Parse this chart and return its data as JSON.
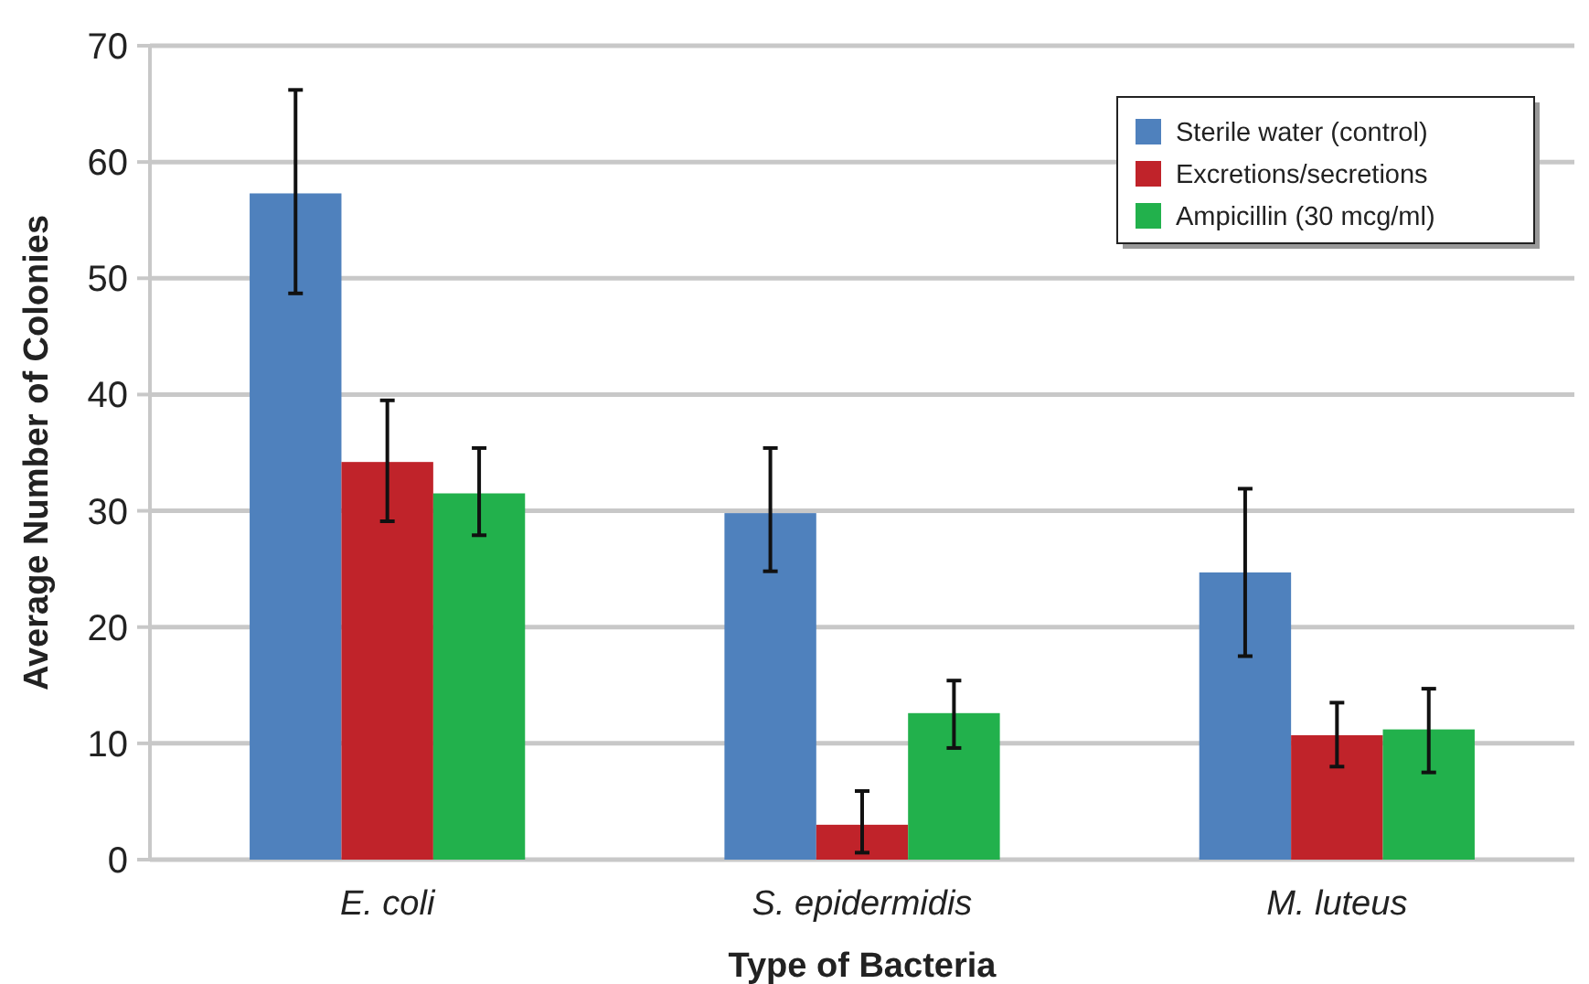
{
  "chart_data": {
    "type": "bar",
    "xlabel": "Type of Bacteria",
    "ylabel": "Average Number of Colonies",
    "categories": [
      "E. coli",
      "S. epidermidis",
      "M. luteus"
    ],
    "series": [
      {
        "name": "Sterile water (control)",
        "color": "#4f81bd",
        "values": [
          57.3,
          29.8,
          24.7
        ],
        "errors": [
          [
            48.7,
            66.2
          ],
          [
            24.8,
            35.4
          ],
          [
            17.5,
            31.9
          ]
        ]
      },
      {
        "name": "Excretions/secretions",
        "color": "#c0232a",
        "values": [
          34.2,
          3.0,
          10.7
        ],
        "errors": [
          [
            29.1,
            39.5
          ],
          [
            0.6,
            5.9
          ],
          [
            8.0,
            13.5
          ]
        ]
      },
      {
        "name": "Ampicillin (30 mcg/ml)",
        "color": "#22b14c",
        "values": [
          31.5,
          12.6,
          11.2
        ],
        "errors": [
          [
            27.9,
            35.4
          ],
          [
            9.6,
            15.4
          ],
          [
            7.5,
            14.7
          ]
        ]
      }
    ],
    "ylim": [
      0,
      70
    ],
    "yticks": [
      0,
      10,
      20,
      30,
      40,
      50,
      60,
      70
    ],
    "grid": "y",
    "legend": "top right"
  }
}
